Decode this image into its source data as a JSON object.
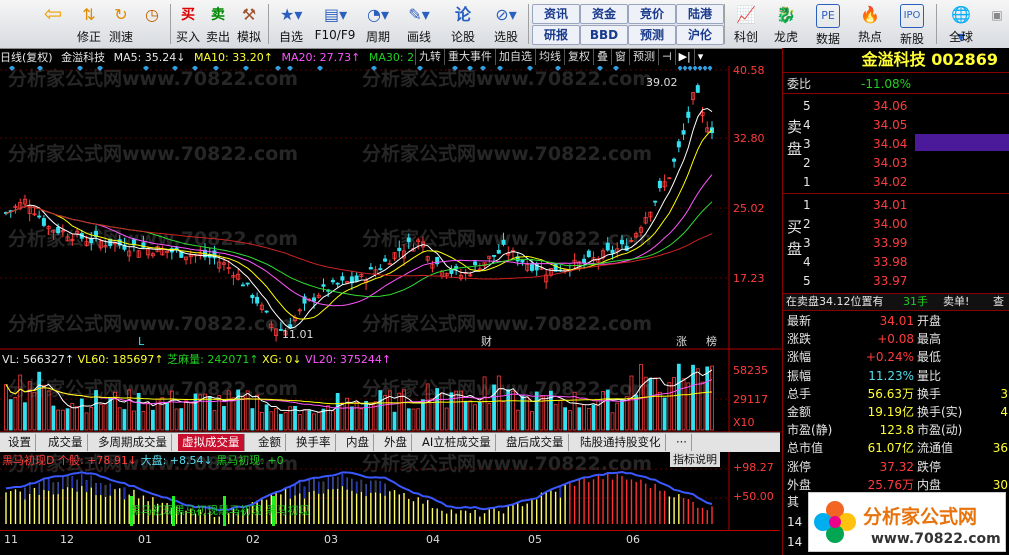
{
  "toolbar": {
    "items": [
      {
        "label": "",
        "icon": "back-arrow-icon"
      },
      {
        "label": "修正",
        "icon": "updown-icon"
      },
      {
        "label": "测速",
        "icon": "refresh-icon"
      },
      {
        "label": "",
        "icon": "clock-icon"
      },
      {
        "label": "买入",
        "icon": "buy-icon"
      },
      {
        "label": "卖出",
        "icon": "sell-icon"
      },
      {
        "label": "模拟",
        "icon": "hammer-icon"
      },
      {
        "label": "自选",
        "icon": "star-icon"
      },
      {
        "label": "F10/F9",
        "icon": "f10-icon"
      },
      {
        "label": "周期",
        "icon": "period-icon"
      },
      {
        "label": "画线",
        "icon": "draw-icon"
      },
      {
        "label": "论股",
        "icon": "discuss-icon"
      },
      {
        "label": "选股",
        "icon": "stock-pick-icon"
      }
    ],
    "small_buttons": [
      [
        "资讯",
        "资金",
        "竞价",
        "陆港"
      ],
      [
        "研报",
        "BBD",
        "预测",
        "沪伦"
      ]
    ],
    "right_items": [
      "科创",
      "龙虎",
      "数据",
      "热点",
      "新股",
      "全球"
    ]
  },
  "chart_header": {
    "mode": "日线(复权)",
    "name": "金溢科技",
    "ma5": "MA5: 35.24↓",
    "ma10": "MA10: 33.20↑",
    "ma20": "MA20: 27.73↑",
    "ma30": "MA30: 2",
    "buttons": [
      "九转",
      "重大事件",
      "加自选",
      "均线",
      "复权",
      "叠",
      "窗",
      "预测"
    ]
  },
  "price_axis": [
    "40.58",
    "32.80",
    "25.02",
    "17.23"
  ],
  "annotations": {
    "high": "39.02",
    "low": "11.01",
    "marker_l": "L",
    "marker_cai": "财",
    "marker_zhang": "涨",
    "marker_bang": "榜"
  },
  "volume": {
    "vl": "VL: 566327↑",
    "vl60": "VL60: 185697↑",
    "zhima": "芝麻量: 242071↑",
    "xg": "XG: 0↓",
    "vl20": "VL20: 375244↑",
    "axis": [
      "58235",
      "29117"
    ],
    "unit": "X10"
  },
  "vtabs": [
    "设置",
    "成交量",
    "多周期成交量",
    "虚拟成交量",
    "金额",
    "换手率",
    "内盘",
    "外盘",
    "AI立桩成交量",
    "盘后成交量",
    "陆股通持股变化",
    "···"
  ],
  "indicator": {
    "title": "黑马初现D 个股: +78.91↓",
    "dapan": "大盘: +8.54↓",
    "heima": "黑马初现: +0",
    "help": "指标说明",
    "axis": [
      "+98.27",
      "+50.00"
    ],
    "signal_text": "黑马初现",
    "signal_labels": [
      "黑马初现",
      "黑马初现",
      "黑马初现",
      "黑马初现"
    ]
  },
  "time_axis": [
    "11",
    "12",
    "01",
    "02",
    "03",
    "04",
    "05",
    "06"
  ],
  "quote": {
    "title": "金溢科技 002869",
    "weibi_label": "委比",
    "weibi": "-11.08%",
    "sell_label": "卖盘",
    "buy_label": "买盘",
    "sells": [
      {
        "lv": "5",
        "p": "34.06"
      },
      {
        "lv": "4",
        "p": "34.05"
      },
      {
        "lv": "3",
        "p": "34.04"
      },
      {
        "lv": "2",
        "p": "34.03"
      },
      {
        "lv": "1",
        "p": "34.02"
      }
    ],
    "buys": [
      {
        "lv": "1",
        "p": "34.01"
      },
      {
        "lv": "2",
        "p": "34.00"
      },
      {
        "lv": "3",
        "p": "33.99"
      },
      {
        "lv": "4",
        "p": "33.98"
      },
      {
        "lv": "5",
        "p": "33.97"
      }
    ],
    "notice": "在卖盘34.12位置有",
    "notice_qty": "31手",
    "notice_tag": "卖单!",
    "notice_more": "查",
    "stats": [
      {
        "l": "最新",
        "v": "34.01",
        "l2": "开盘"
      },
      {
        "l": "涨跌",
        "v": "+0.08",
        "l2": "最高"
      },
      {
        "l": "涨幅",
        "v": "+0.24%",
        "l2": "最低"
      },
      {
        "l": "振幅",
        "v": "11.23%",
        "l2": "量比"
      },
      {
        "l": "总手",
        "v": "56.63万",
        "l2": "换手",
        "v2": "3"
      },
      {
        "l": "金额",
        "v": "19.19亿",
        "l2": "换手(实)",
        "v2": "4"
      },
      {
        "l": "市盈(静)",
        "v": "123.8",
        "l2": "市盈(动)"
      },
      {
        "l": "总市值",
        "v": "61.07亿",
        "l2": "流通值",
        "v2": "36"
      },
      {
        "l": "涨停",
        "v": "37.32",
        "l2": "跌停"
      },
      {
        "l": "外盘",
        "v": "25.76万",
        "l2": "内盘",
        "v2": "30"
      }
    ],
    "row_qi": "其",
    "row_14": "14",
    "row_14b": "14"
  },
  "watermark": "分析家公式网www.70822.com",
  "logo": {
    "text": "分析家公式网",
    "url": "www.70822.com"
  },
  "colors": {
    "up": "#ff3c3c",
    "down": "#33e0f0",
    "ma5": "#ffffff",
    "ma10": "#ffff00",
    "ma20": "#ff55ff",
    "ma30": "#33dd33",
    "axis": "#b00000"
  }
}
